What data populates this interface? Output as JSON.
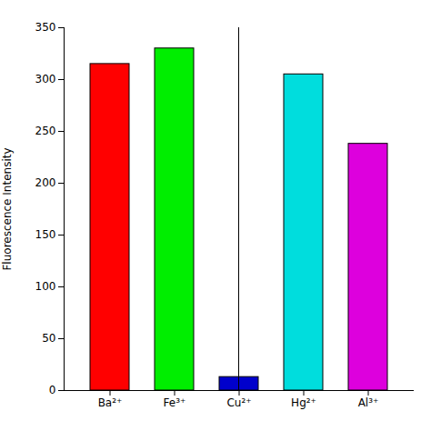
{
  "chart_data": {
    "type": "bar",
    "ylabel": "Fluorescence Intensity",
    "categories": [
      "Ba²⁺",
      "Fe³⁺",
      "Cu²⁺",
      "Hg²⁺",
      "Al³⁺"
    ],
    "values": [
      315,
      330,
      13,
      305,
      238
    ],
    "colors": [
      "#ff0000",
      "#00ee00",
      "#0000cc",
      "#00dddd",
      "#dd00dd"
    ],
    "ylim": [
      0,
      350
    ],
    "yticks": [
      0,
      50,
      100,
      150,
      200,
      250,
      300,
      350
    ],
    "grid": false
  }
}
